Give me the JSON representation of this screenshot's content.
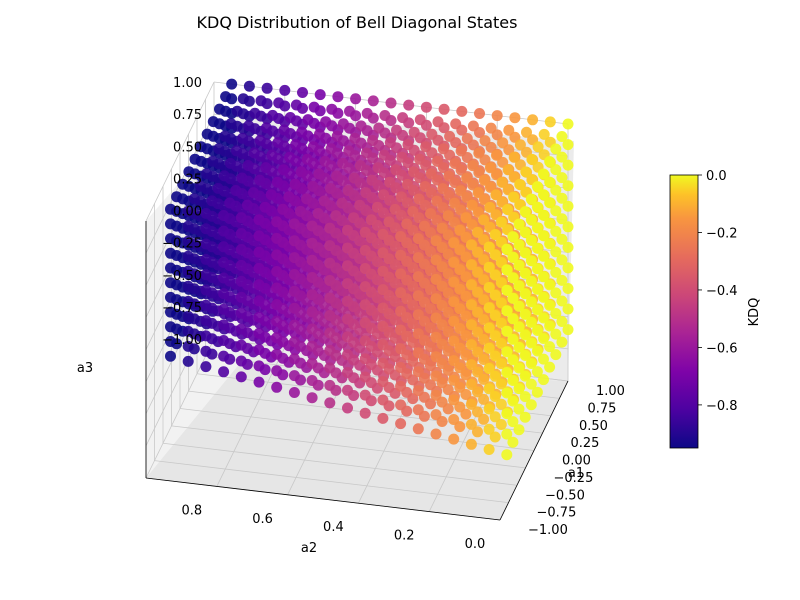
{
  "chart_data": {
    "type": "scatter3d",
    "title": "KDQ Distribution of Bell Diagonal States",
    "xlabel": "a1",
    "ylabel": "a2",
    "zlabel": "a3",
    "colorbar_label": "KDQ",
    "colormap": "plasma",
    "grid": true,
    "xlim": [
      -1.0,
      1.0
    ],
    "ylim": [
      0.0,
      1.0
    ],
    "zlim": [
      -1.0,
      1.0
    ],
    "clim": [
      -0.95,
      0.0
    ],
    "x_ticks": [
      "−1.00",
      "−0.75",
      "−0.50",
      "−0.25",
      "0.00",
      "0.25",
      "0.50",
      "0.75",
      "1.00"
    ],
    "y_ticks": [
      "0.0",
      "0.2",
      "0.4",
      "0.6",
      "0.8"
    ],
    "z_ticks": [
      "−1.00",
      "−0.75",
      "−0.50",
      "−0.25",
      "0.00",
      "0.25",
      "0.50",
      "0.75",
      "1.00"
    ],
    "colorbar_ticks": [
      "0.0",
      "−0.2",
      "−0.4",
      "−0.6",
      "−0.8"
    ],
    "data_note_points": {
      "a2": [
        0.0,
        0.05,
        0.1,
        0.15,
        0.2,
        0.25,
        0.3,
        0.35,
        0.4,
        0.45,
        0.5,
        0.55,
        0.6,
        0.65,
        0.7,
        0.75,
        0.8,
        0.85,
        0.9,
        0.95
      ],
      "kdq_by_a2": [
        0.0,
        -0.05,
        -0.1,
        -0.15,
        -0.2,
        -0.25,
        -0.3,
        -0.35,
        -0.4,
        -0.45,
        -0.5,
        -0.55,
        -0.6,
        -0.65,
        -0.7,
        -0.75,
        -0.8,
        -0.85,
        -0.9,
        -0.95
      ]
    }
  }
}
